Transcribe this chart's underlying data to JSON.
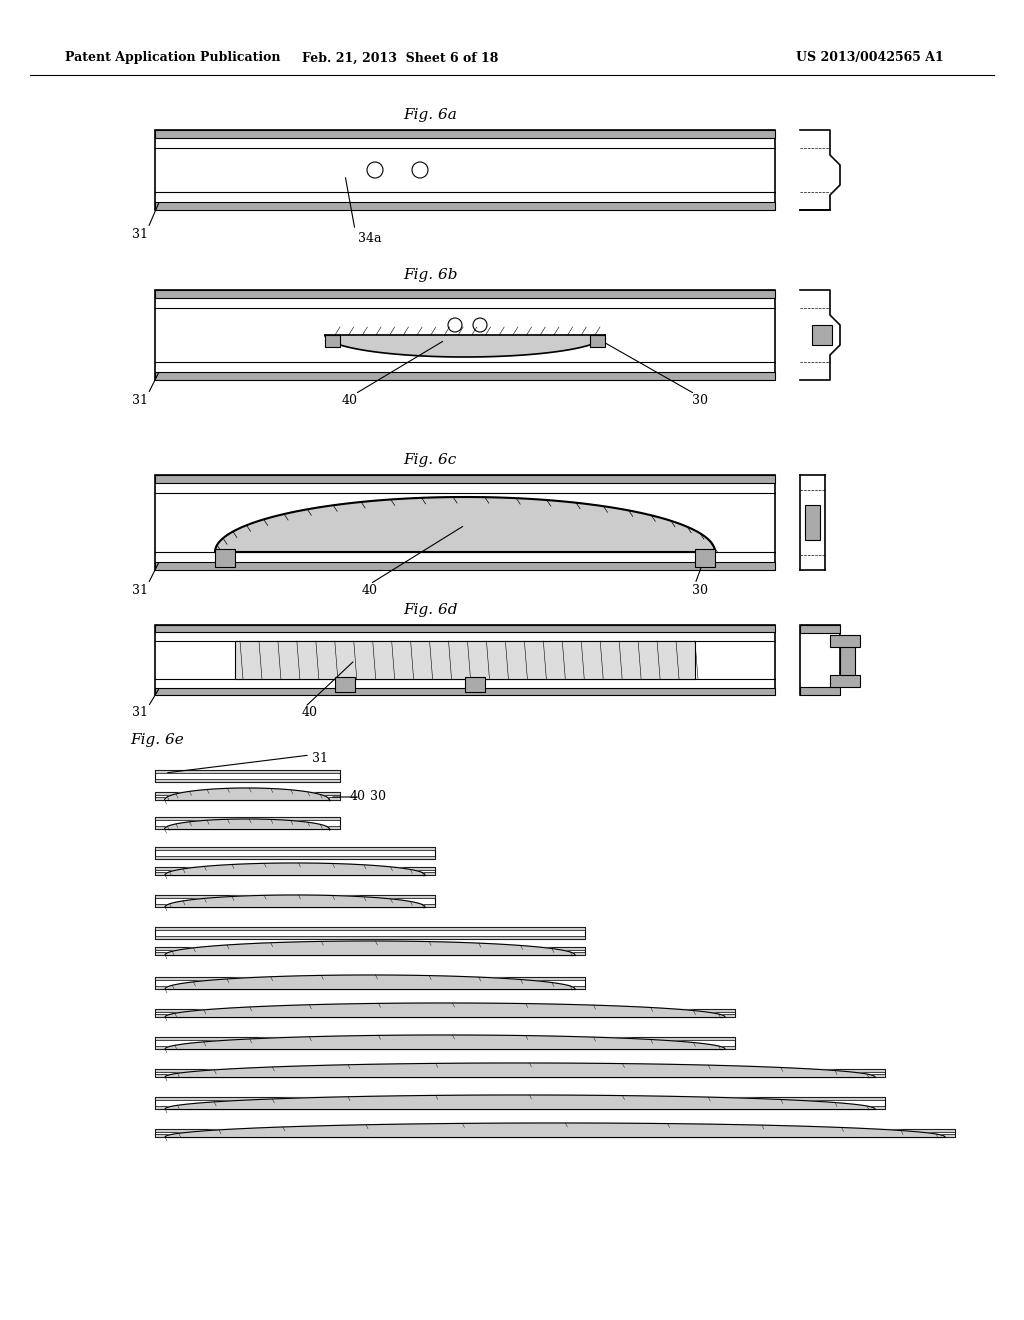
{
  "header_left": "Patent Application Publication",
  "header_mid": "Feb. 21, 2013  Sheet 6 of 18",
  "header_right": "US 2013/0042565 A1",
  "bg_color": "#ffffff",
  "line_color": "#000000",
  "hatch_color": "#555555",
  "fig_labels": [
    "Fig. 6a",
    "Fig. 6b",
    "Fig. 6c",
    "Fig. 6d",
    "Fig. 6e"
  ]
}
